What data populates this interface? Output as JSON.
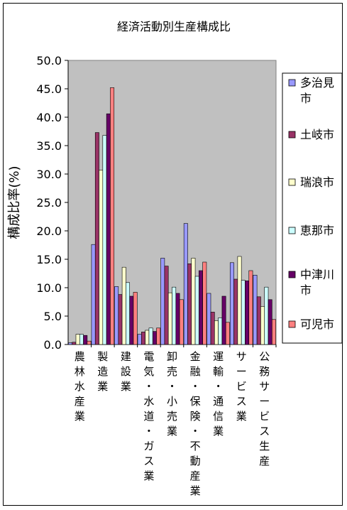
{
  "chart_data": {
    "type": "bar",
    "title": "経済活動別生産構成比",
    "ylabel": "構成比率(%)",
    "xlabel": "",
    "ylim": [
      0,
      50
    ],
    "yticks": [
      "0.0",
      "5.0",
      "10.0",
      "15.0",
      "20.0",
      "25.0",
      "30.0",
      "35.0",
      "40.0",
      "45.0",
      "50.0"
    ],
    "grid": false,
    "legend_position": "right",
    "categories": [
      "農林水産業",
      "製造業",
      "建設業",
      "電気・水道・ガス業",
      "卸売・小売業",
      "金融・保険・不動産業",
      "運輸・通信業",
      "サービス業",
      "公務サービス生産"
    ],
    "series": [
      {
        "name": "多治見市",
        "color": "#9999ff",
        "values": [
          0.3,
          17.6,
          10.2,
          1.8,
          15.2,
          21.3,
          9.0,
          14.4,
          12.2
        ]
      },
      {
        "name": "土岐市",
        "color": "#993366",
        "values": [
          0.4,
          37.3,
          8.8,
          2.2,
          13.8,
          14.2,
          5.7,
          11.5,
          8.4
        ]
      },
      {
        "name": "瑞浪市",
        "color": "#ffffcc",
        "values": [
          1.8,
          30.7,
          13.6,
          2.5,
          9.1,
          15.2,
          4.2,
          15.5,
          6.7
        ]
      },
      {
        "name": "恵那市",
        "color": "#ccffff",
        "values": [
          1.8,
          36.8,
          10.9,
          2.9,
          10.1,
          12.0,
          4.7,
          11.3,
          10.1
        ]
      },
      {
        "name": "中津川市",
        "color": "#660066",
        "values": [
          1.6,
          40.6,
          8.5,
          2.3,
          9.0,
          13.0,
          8.5,
          11.2,
          7.9
        ]
      },
      {
        "name": "可児市",
        "color": "#ff8080",
        "values": [
          0.6,
          45.2,
          9.2,
          2.9,
          7.9,
          14.5,
          3.9,
          13.0,
          4.4
        ]
      }
    ]
  }
}
